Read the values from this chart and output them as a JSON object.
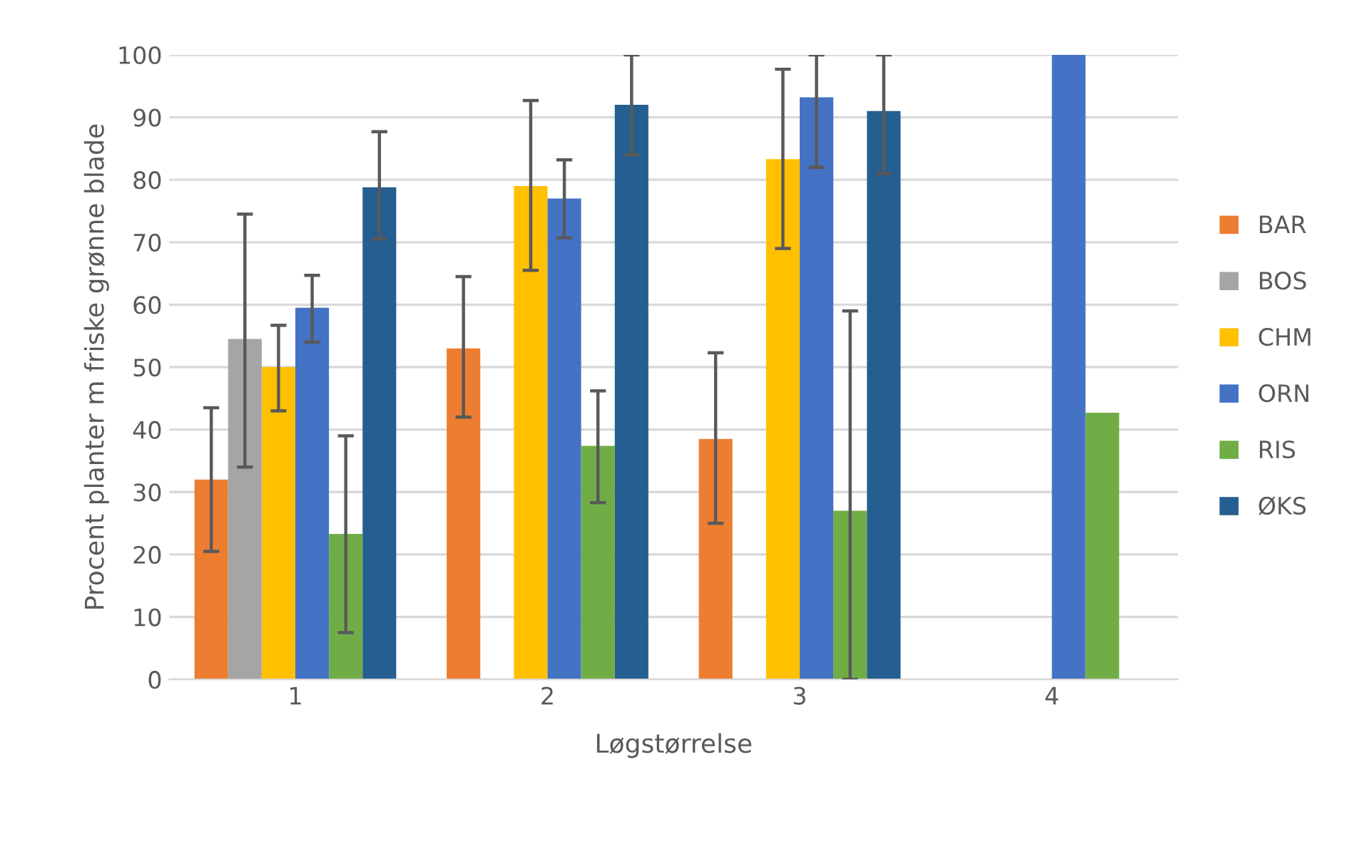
{
  "chart_data": {
    "type": "bar",
    "xlabel": "Løgstørrelse",
    "ylabel": "Procent planter m friske grønne blade",
    "categories": [
      "1",
      "2",
      "3",
      "4"
    ],
    "series": [
      {
        "name": "BAR",
        "color": "#ed7d31",
        "values": [
          32,
          53,
          38.5,
          null
        ],
        "errors": [
          [
            20.5,
            43.5
          ],
          [
            42,
            64.5
          ],
          [
            25,
            52.3
          ],
          null
        ]
      },
      {
        "name": "BOS",
        "color": "#a5a5a5",
        "values": [
          54.5,
          null,
          null,
          null
        ],
        "errors": [
          [
            34,
            74.5
          ],
          null,
          null,
          null
        ]
      },
      {
        "name": "CHM",
        "color": "#ffc000",
        "values": [
          50,
          79,
          83.3,
          null
        ],
        "errors": [
          [
            43,
            56.7
          ],
          [
            65.5,
            92.7
          ],
          [
            69,
            97.7
          ],
          null
        ]
      },
      {
        "name": "ORN",
        "color": "#4472c4",
        "values": [
          59.5,
          77,
          93.2,
          100
        ],
        "errors": [
          [
            54,
            64.7
          ],
          [
            70.7,
            83.2
          ],
          [
            82,
            100
          ],
          null
        ]
      },
      {
        "name": "RIS",
        "color": "#70ad47",
        "values": [
          23.3,
          37.4,
          27,
          42.7
        ],
        "errors": [
          [
            7.5,
            39
          ],
          [
            28.3,
            46.2
          ],
          [
            0,
            59
          ],
          null
        ]
      },
      {
        "name": "ØKS",
        "color": "#255e91",
        "values": [
          78.8,
          92,
          91,
          null
        ],
        "errors": [
          [
            70.5,
            87.7
          ],
          [
            84,
            100
          ],
          [
            81,
            100
          ],
          null
        ]
      }
    ],
    "ylim": [
      0,
      100
    ],
    "yticks": [
      0,
      10,
      20,
      30,
      40,
      50,
      60,
      70,
      80,
      90,
      100
    ],
    "grid": "y",
    "legend": "right"
  }
}
